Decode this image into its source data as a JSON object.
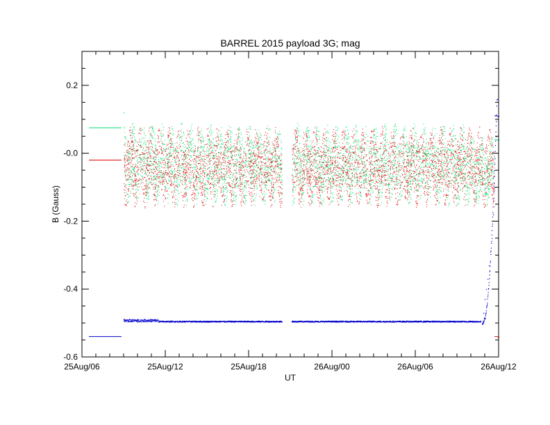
{
  "chart_data": {
    "type": "scatter",
    "title": "BARREL 2015 payload 3G; mag",
    "xlabel": "UT",
    "ylabel": "B (Gauss)",
    "x_tick_labels": [
      "25Aug/06",
      "25Aug/12",
      "25Aug/18",
      "26Aug/00",
      "26Aug/06",
      "26Aug/12"
    ],
    "x_tick_hours": [
      0,
      6,
      12,
      18,
      24,
      30
    ],
    "xlim_hours_since_25Aug06": [
      0,
      30
    ],
    "y_tick_labels": [
      "-0.6",
      "-0.4",
      "-0.2",
      "-0.0",
      "0.2"
    ],
    "y_tick_values": [
      -0.6,
      -0.4,
      -0.2,
      0.0,
      0.2
    ],
    "ylim": [
      -0.6,
      0.3
    ],
    "grid": false,
    "legend": "none",
    "series": [
      {
        "color": "#00e070",
        "mean_level": 0.075,
        "ranges": [
          {
            "x": [
              3.0,
              14.4
            ],
            "y": [
              -0.155,
              0.09
            ]
          },
          {
            "x": [
              15.1,
              24.0
            ],
            "y": [
              -0.155,
              0.09
            ]
          },
          {
            "x": [
              24.0,
              28.0
            ],
            "y": [
              -0.155,
              0.09
            ]
          },
          {
            "x": [
              28.0,
              29.7
            ],
            "y": [
              -0.155,
              0.05
            ]
          }
        ],
        "points": [
          [
            3.0,
            0.12
          ],
          [
            29.9,
            0.04
          ],
          [
            30.0,
            0.04
          ]
        ]
      },
      {
        "color": "#e00000",
        "mean_level": -0.02,
        "ranges": [
          {
            "x": [
              3.0,
              14.4
            ],
            "y": [
              -0.16,
              0.08
            ]
          },
          {
            "x": [
              15.1,
              24.0
            ],
            "y": [
              -0.16,
              0.08
            ]
          },
          {
            "x": [
              24.0,
              28.0
            ],
            "y": [
              -0.16,
              0.08
            ]
          },
          {
            "x": [
              28.0,
              29.7
            ],
            "y": [
              -0.16,
              0.08
            ]
          }
        ],
        "points": [
          [
            29.9,
            -0.54
          ],
          [
            30.0,
            -0.54
          ]
        ]
      },
      {
        "color": "#0000cc",
        "mean_level": -0.54,
        "points": [
          [
            3.0,
            -0.49
          ],
          [
            4.0,
            -0.496
          ],
          [
            5.0,
            -0.494
          ],
          [
            6.0,
            -0.494
          ],
          [
            9.0,
            -0.495
          ],
          [
            12.0,
            -0.495
          ],
          [
            14.2,
            -0.495
          ],
          [
            15.1,
            -0.496
          ],
          [
            18.0,
            -0.495
          ],
          [
            21.0,
            -0.495
          ],
          [
            24.0,
            -0.495
          ],
          [
            27.0,
            -0.496
          ],
          [
            28.7,
            -0.495
          ],
          [
            28.9,
            -0.47
          ],
          [
            29.0,
            -0.43
          ],
          [
            29.1,
            -0.4
          ],
          [
            29.2,
            -0.37
          ],
          [
            29.3,
            -0.33
          ],
          [
            29.4,
            -0.29
          ],
          [
            29.5,
            -0.25
          ],
          [
            29.6,
            -0.18
          ],
          [
            29.7,
            -0.1
          ],
          [
            29.8,
            0.05
          ],
          [
            29.9,
            0.16
          ],
          [
            29.9,
            0.11
          ],
          [
            30.0,
            0.11
          ]
        ]
      }
    ]
  }
}
